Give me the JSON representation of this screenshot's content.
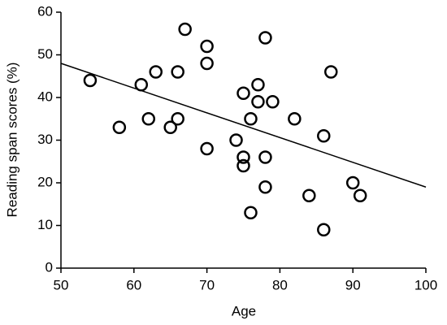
{
  "chart_data": {
    "type": "scatter",
    "xlabel": "Age",
    "ylabel": "Reading span scores (%)",
    "x": [
      54,
      58,
      61,
      62,
      63,
      65,
      66,
      66,
      67,
      70,
      70,
      70,
      74,
      75,
      75,
      75,
      76,
      76,
      77,
      77,
      78,
      78,
      78,
      79,
      82,
      84,
      86,
      86,
      87,
      90,
      91
    ],
    "y": [
      44,
      33,
      43,
      35,
      46,
      33,
      35,
      46,
      56,
      52,
      48,
      28,
      30,
      41,
      26,
      24,
      35,
      13,
      43,
      39,
      54,
      26,
      19,
      39,
      35,
      17,
      31,
      9,
      46,
      20,
      17
    ],
    "color": "#000000",
    "trend_line": {
      "x": [
        50,
        100
      ],
      "y": [
        48,
        19
      ]
    },
    "xlim": [
      50,
      100
    ],
    "xticks": [
      50,
      60,
      70,
      80,
      90,
      100
    ],
    "ylim": [
      0,
      60
    ],
    "yticks": [
      0,
      10,
      20,
      30,
      40,
      50,
      60
    ]
  }
}
